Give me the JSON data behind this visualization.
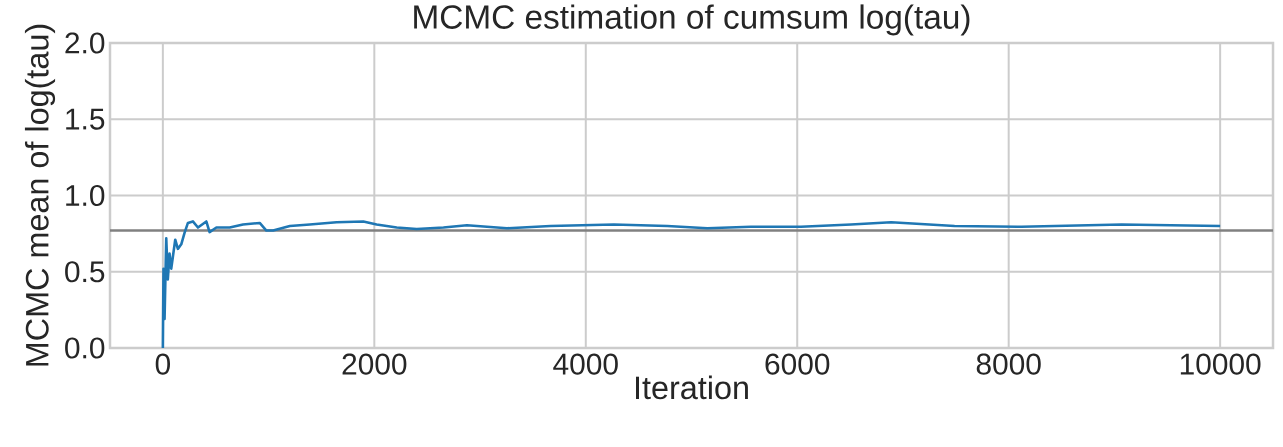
{
  "chart_data": {
    "type": "line",
    "title": "MCMC estimation of cumsum log(tau)",
    "xlabel": "Iteration",
    "ylabel": "MCMC mean of log(tau)",
    "x": [
      0,
      6,
      16,
      32,
      47,
      63,
      79,
      95,
      117,
      142,
      174,
      205,
      237,
      284,
      332,
      411,
      442,
      506,
      632,
      758,
      916,
      979,
      1043,
      1201,
      1390,
      1643,
      1896,
      2022,
      2212,
      2401,
      2654,
      2876,
      3255,
      3666,
      4266,
      4771,
      5150,
      5561,
      6035,
      6509,
      6888,
      7488,
      8120,
      9068,
      10000
    ],
    "series": [
      {
        "color": "#1f77b4",
        "values": [
          0.0,
          0.52,
          0.19,
          0.72,
          0.45,
          0.62,
          0.52,
          0.6,
          0.71,
          0.65,
          0.68,
          0.755,
          0.82,
          0.83,
          0.79,
          0.83,
          0.76,
          0.79,
          0.79,
          0.81,
          0.82,
          0.77,
          0.77,
          0.8,
          0.81,
          0.825,
          0.83,
          0.81,
          0.79,
          0.78,
          0.79,
          0.805,
          0.785,
          0.8,
          0.81,
          0.8,
          0.785,
          0.795,
          0.795,
          0.81,
          0.825,
          0.8,
          0.795,
          0.81,
          0.8
        ]
      }
    ],
    "xlim": [
      -500,
      10500
    ],
    "ylim": [
      0,
      2
    ],
    "xticks": [
      0,
      2000,
      4000,
      6000,
      8000,
      10000
    ],
    "yticks": [
      {
        "value": 0,
        "label": "0.0"
      },
      {
        "value": 0.5,
        "label": "0.5"
      },
      {
        "value": 1.0,
        "label": "1.0"
      },
      {
        "value": 1.5,
        "label": "1.5"
      },
      {
        "value": 2.0,
        "label": "2.0"
      }
    ],
    "ref_lines": [
      {
        "axis": "y",
        "value": 0.77,
        "color": "#808080"
      }
    ],
    "grid": true,
    "marker": "none",
    "line_style": "solid"
  }
}
